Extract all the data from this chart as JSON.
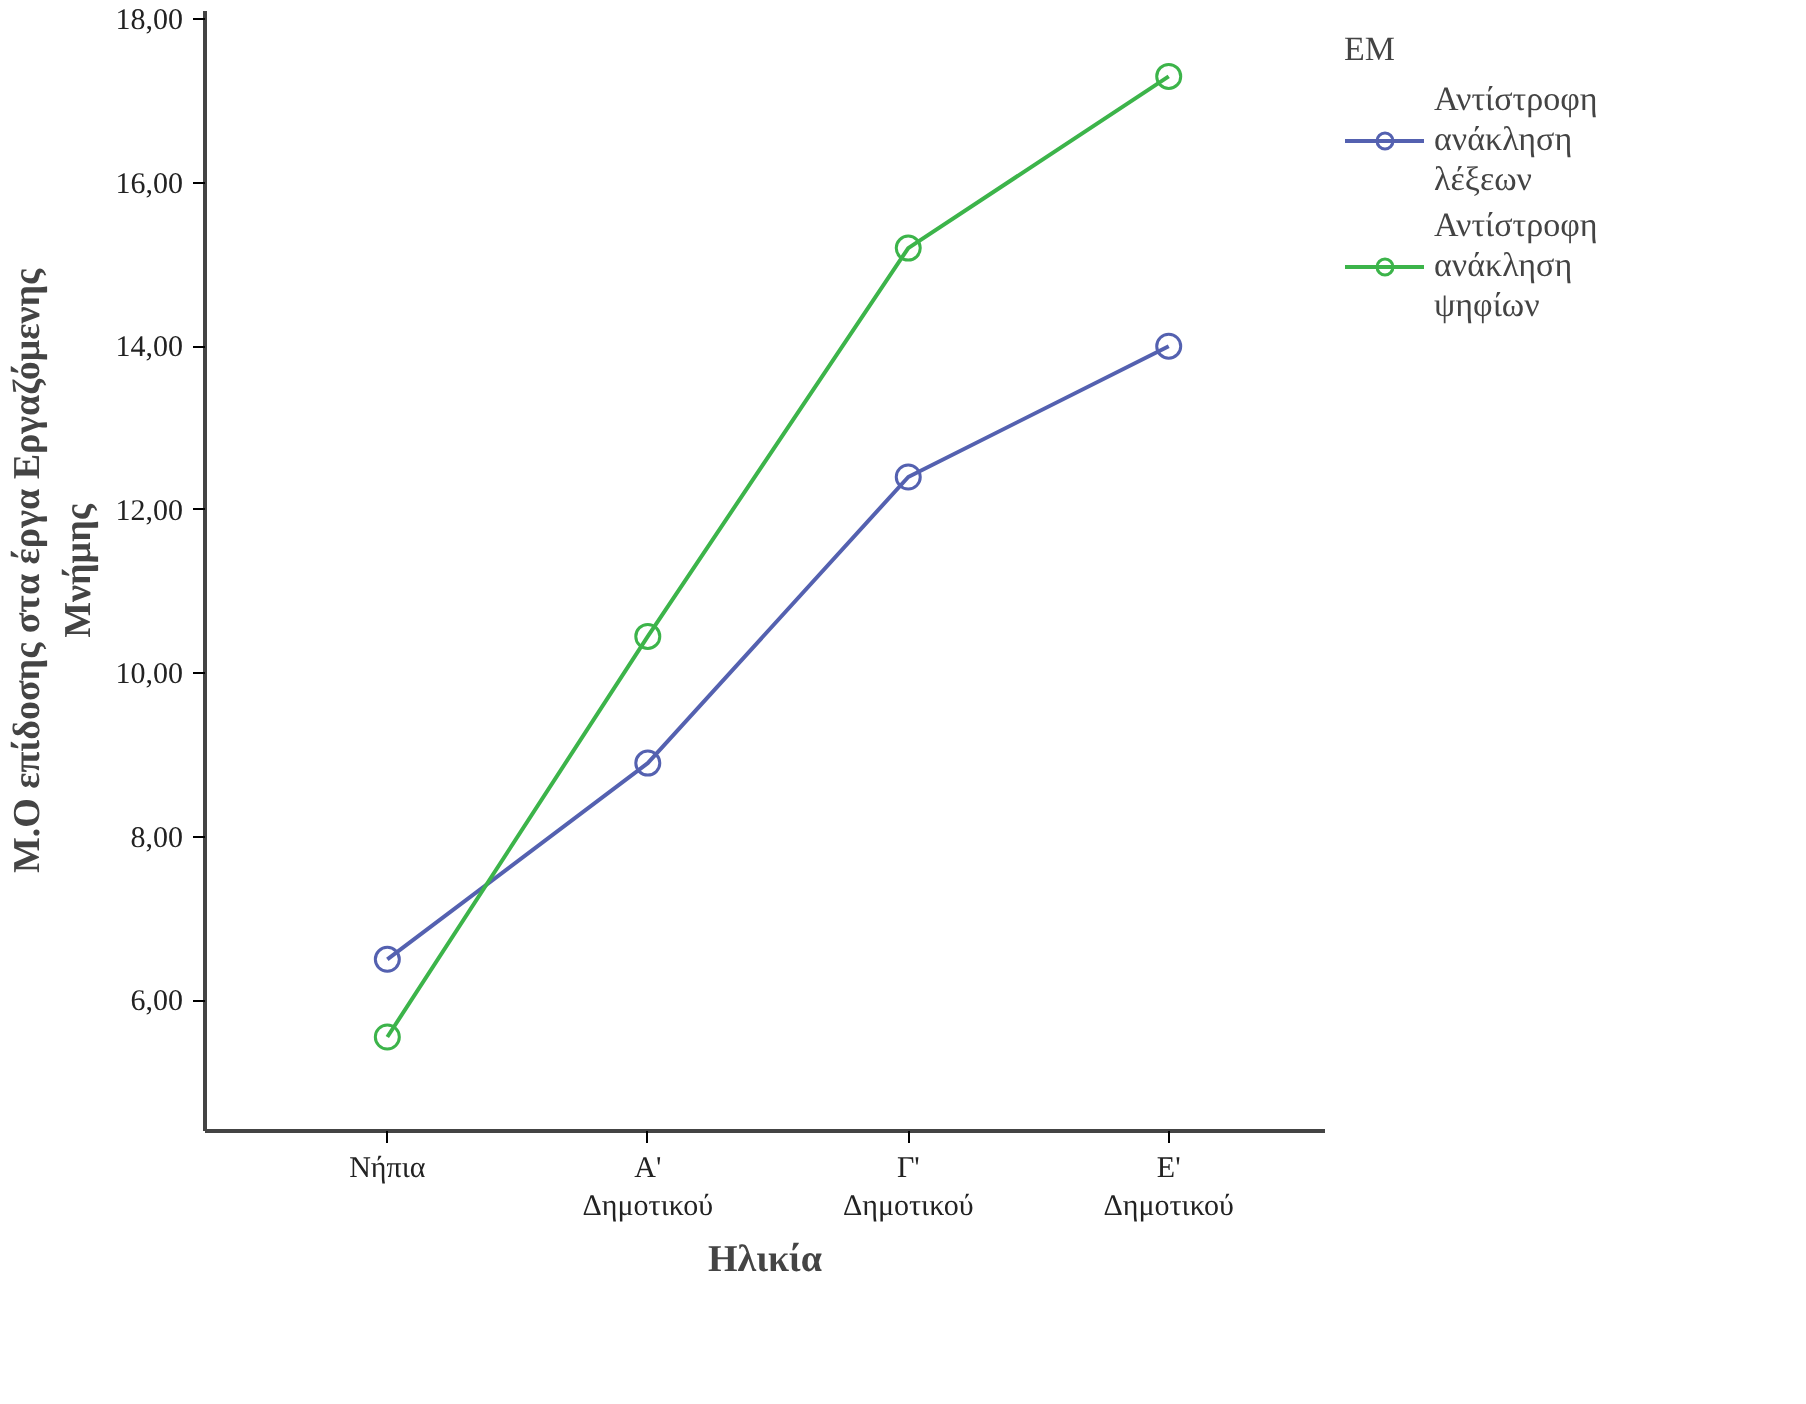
{
  "chart_data": {
    "type": "line",
    "xlabel": "Ηλικία",
    "ylabel": "Μ.Ο επίδοσης στα έργα Εργαζόμενης Μνήμης",
    "legend_title": "ΕΜ",
    "categories": [
      "Νήπια",
      "Α' Δημοτικού",
      "Γ' Δημοτικού",
      "Ε' Δημοτικού"
    ],
    "series": [
      {
        "name": "Αντίστροφη ανάκληση λέξεων",
        "color": "#5461b0",
        "values": [
          6.5,
          8.9,
          12.4,
          14.0
        ]
      },
      {
        "name": "Αντίστροφη ανάκληση ψηφίων",
        "color": "#3cb44a",
        "values": [
          5.55,
          10.45,
          15.2,
          17.3
        ]
      }
    ],
    "ylim": [
      4.4,
      18.1
    ],
    "yticks": [
      {
        "value": 6,
        "label": "6,00"
      },
      {
        "value": 8,
        "label": "8,00"
      },
      {
        "value": 10,
        "label": "10,00"
      },
      {
        "value": 12,
        "label": "12,00"
      },
      {
        "value": 14,
        "label": "14,00"
      },
      {
        "value": 16,
        "label": "16,00"
      },
      {
        "value": 18,
        "label": "18,00"
      }
    ],
    "marker": "circle",
    "line_style": "solid",
    "grid": false,
    "legend": "top right"
  }
}
